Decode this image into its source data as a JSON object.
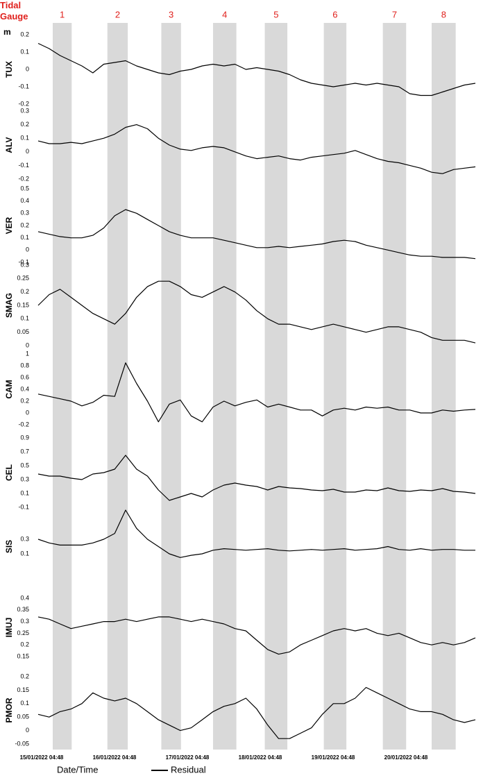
{
  "title": "Tidal Gauge",
  "y_unit": "m",
  "x_label": "Date/Time",
  "legend": "Residual",
  "band_color": "#d9d9d9",
  "bands": [
    {
      "label": "1",
      "range": [
        0.2,
        0.46
      ]
    },
    {
      "label": "2",
      "range": [
        0.95,
        1.23
      ]
    },
    {
      "label": "3",
      "range": [
        1.69,
        1.96
      ]
    },
    {
      "label": "4",
      "range": [
        2.4,
        2.72
      ]
    },
    {
      "label": "5",
      "range": [
        3.11,
        3.42
      ]
    },
    {
      "label": "6",
      "range": [
        3.92,
        4.23
      ]
    },
    {
      "label": "7",
      "range": [
        4.73,
        5.05
      ]
    },
    {
      "label": "8",
      "range": [
        5.4,
        5.73
      ]
    }
  ],
  "xlim": [
    0,
    6.1
  ],
  "xticks": [
    {
      "value": 0,
      "label": "15/01/2022 04:48"
    },
    {
      "value": 1,
      "label": "16/01/2022 04:48"
    },
    {
      "value": 2,
      "label": "17/01/2022 04:48"
    },
    {
      "value": 3,
      "label": "18/01/2022 04:48"
    },
    {
      "value": 4,
      "label": "19/01/2022 04:48"
    },
    {
      "value": 5,
      "label": "20/01/2022 04:48"
    }
  ],
  "x": [
    0,
    0.15,
    0.3,
    0.45,
    0.6,
    0.75,
    0.9,
    1.05,
    1.2,
    1.35,
    1.5,
    1.65,
    1.8,
    1.95,
    2.1,
    2.25,
    2.4,
    2.55,
    2.7,
    2.85,
    3,
    3.15,
    3.3,
    3.45,
    3.6,
    3.75,
    3.9,
    4.05,
    4.2,
    4.35,
    4.5,
    4.65,
    4.8,
    4.95,
    5.1,
    5.25,
    5.4,
    5.55,
    5.7,
    5.85,
    6
  ],
  "chart_data": [
    {
      "type": "line",
      "ylabel": "TUX",
      "color": "#000000",
      "ylim": [
        -0.2,
        0.2
      ],
      "yticks": [
        0.2,
        0.1,
        0,
        -0.1,
        -0.2
      ],
      "values": [
        0.15,
        0.12,
        0.08,
        0.05,
        0.02,
        -0.02,
        0.03,
        0.04,
        0.05,
        0.02,
        0.0,
        -0.02,
        -0.03,
        -0.01,
        0.0,
        0.02,
        0.03,
        0.02,
        0.03,
        0.0,
        0.01,
        0.0,
        -0.01,
        -0.03,
        -0.06,
        -0.08,
        -0.09,
        -0.1,
        -0.09,
        -0.08,
        -0.09,
        -0.08,
        -0.09,
        -0.1,
        -0.14,
        -0.15,
        -0.15,
        -0.13,
        -0.11,
        -0.09,
        -0.08
      ]
    },
    {
      "type": "line",
      "ylabel": "ALV",
      "color": "#000000",
      "ylim": [
        -0.2,
        0.3
      ],
      "yticks": [
        0.3,
        0.2,
        0.1,
        0,
        -0.1,
        -0.2
      ],
      "values": [
        0.08,
        0.06,
        0.06,
        0.07,
        0.06,
        0.08,
        0.1,
        0.13,
        0.18,
        0.2,
        0.17,
        0.1,
        0.05,
        0.02,
        0.01,
        0.03,
        0.04,
        0.03,
        0.0,
        -0.03,
        -0.05,
        -0.04,
        -0.03,
        -0.05,
        -0.06,
        -0.04,
        -0.03,
        -0.02,
        -0.01,
        0.01,
        -0.02,
        -0.05,
        -0.07,
        -0.08,
        -0.1,
        -0.12,
        -0.15,
        -0.16,
        -0.13,
        -0.12,
        -0.11
      ]
    },
    {
      "type": "line",
      "ylabel": "VER",
      "color": "#000000",
      "ylim": [
        -0.1,
        0.5
      ],
      "yticks": [
        0.5,
        0.4,
        0.3,
        0.2,
        0.1,
        0,
        -0.1
      ],
      "values": [
        0.15,
        0.13,
        0.11,
        0.1,
        0.1,
        0.12,
        0.18,
        0.28,
        0.33,
        0.3,
        0.25,
        0.2,
        0.15,
        0.12,
        0.1,
        0.1,
        0.1,
        0.08,
        0.06,
        0.04,
        0.02,
        0.02,
        0.03,
        0.02,
        0.03,
        0.04,
        0.05,
        0.07,
        0.08,
        0.07,
        0.04,
        0.02,
        0.0,
        -0.02,
        -0.04,
        -0.05,
        -0.05,
        -0.06,
        -0.06,
        -0.06,
        -0.07
      ]
    },
    {
      "type": "line",
      "ylabel": "SMAG",
      "color": "#000000",
      "ylim": [
        0,
        0.3
      ],
      "yticks": [
        0.3,
        0.25,
        0.2,
        0.15,
        0.1,
        0.05,
        0
      ],
      "values": [
        0.15,
        0.19,
        0.21,
        0.18,
        0.15,
        0.12,
        0.1,
        0.08,
        0.12,
        0.18,
        0.22,
        0.24,
        0.24,
        0.22,
        0.19,
        0.18,
        0.2,
        0.22,
        0.2,
        0.17,
        0.13,
        0.1,
        0.08,
        0.08,
        0.07,
        0.06,
        0.07,
        0.08,
        0.07,
        0.06,
        0.05,
        0.06,
        0.07,
        0.07,
        0.06,
        0.05,
        0.03,
        0.02,
        0.02,
        0.02,
        0.01
      ]
    },
    {
      "type": "line",
      "ylabel": "CAM",
      "color": "#000000",
      "ylim": [
        -0.2,
        1
      ],
      "yticks": [
        1,
        0.8,
        0.6,
        0.4,
        0.2,
        0,
        -0.2
      ],
      "values": [
        0.32,
        0.28,
        0.24,
        0.2,
        0.12,
        0.18,
        0.3,
        0.28,
        0.85,
        0.5,
        0.2,
        -0.15,
        0.15,
        0.22,
        -0.05,
        -0.15,
        0.1,
        0.2,
        0.12,
        0.18,
        0.22,
        0.1,
        0.15,
        0.1,
        0.05,
        0.05,
        -0.05,
        0.05,
        0.08,
        0.05,
        0.1,
        0.08,
        0.1,
        0.05,
        0.05,
        0.0,
        0.0,
        0.05,
        0.03,
        0.05,
        0.06
      ]
    },
    {
      "type": "line",
      "ylabel": "CEL",
      "color": "#000000",
      "ylim": [
        -0.1,
        0.9
      ],
      "yticks": [
        0.9,
        0.7,
        0.5,
        0.3,
        0.1,
        -0.1
      ],
      "values": [
        0.38,
        0.35,
        0.35,
        0.32,
        0.3,
        0.38,
        0.4,
        0.45,
        0.65,
        0.45,
        0.35,
        0.15,
        0.0,
        0.05,
        0.1,
        0.05,
        0.15,
        0.22,
        0.25,
        0.22,
        0.2,
        0.15,
        0.2,
        0.18,
        0.17,
        0.15,
        0.14,
        0.16,
        0.12,
        0.12,
        0.15,
        0.14,
        0.18,
        0.14,
        0.13,
        0.15,
        0.14,
        0.17,
        0.13,
        0.12,
        0.1
      ]
    },
    {
      "type": "line",
      "ylabel": "SIS",
      "color": "#000000",
      "ylim": [
        -0.1,
        0.9
      ],
      "yticks": [
        0.3,
        0.1
      ],
      "values": [
        0.3,
        0.25,
        0.22,
        0.22,
        0.22,
        0.25,
        0.3,
        0.38,
        0.7,
        0.45,
        0.3,
        0.2,
        0.1,
        0.05,
        0.08,
        0.1,
        0.15,
        0.17,
        0.16,
        0.15,
        0.16,
        0.17,
        0.15,
        0.14,
        0.15,
        0.16,
        0.15,
        0.16,
        0.17,
        0.15,
        0.16,
        0.17,
        0.2,
        0.16,
        0.15,
        0.17,
        0.15,
        0.16,
        0.16,
        0.15,
        0.15
      ]
    },
    {
      "type": "line",
      "ylabel": "IMUJ",
      "color": "#000000",
      "ylim": [
        0.15,
        0.4
      ],
      "yticks": [
        0.4,
        0.35,
        0.3,
        0.25,
        0.2,
        0.15
      ],
      "values": [
        0.32,
        0.31,
        0.29,
        0.27,
        0.28,
        0.29,
        0.3,
        0.3,
        0.31,
        0.3,
        0.31,
        0.32,
        0.32,
        0.31,
        0.3,
        0.31,
        0.3,
        0.29,
        0.27,
        0.26,
        0.22,
        0.18,
        0.16,
        0.17,
        0.2,
        0.22,
        0.24,
        0.26,
        0.27,
        0.26,
        0.27,
        0.25,
        0.24,
        0.25,
        0.23,
        0.21,
        0.2,
        0.21,
        0.2,
        0.21,
        0.23
      ]
    },
    {
      "type": "line",
      "ylabel": "PMOR",
      "color": "#000000",
      "ylim": [
        -0.05,
        0.2
      ],
      "yticks": [
        0.2,
        0.15,
        0.1,
        0.05,
        0,
        -0.05
      ],
      "values": [
        0.06,
        0.05,
        0.07,
        0.08,
        0.1,
        0.14,
        0.12,
        0.11,
        0.12,
        0.1,
        0.07,
        0.04,
        0.02,
        0.0,
        0.01,
        0.04,
        0.07,
        0.09,
        0.1,
        0.12,
        0.08,
        0.02,
        -0.03,
        -0.03,
        -0.01,
        0.01,
        0.06,
        0.1,
        0.1,
        0.12,
        0.16,
        0.14,
        0.12,
        0.1,
        0.08,
        0.07,
        0.07,
        0.06,
        0.04,
        0.03,
        0.04
      ]
    }
  ]
}
